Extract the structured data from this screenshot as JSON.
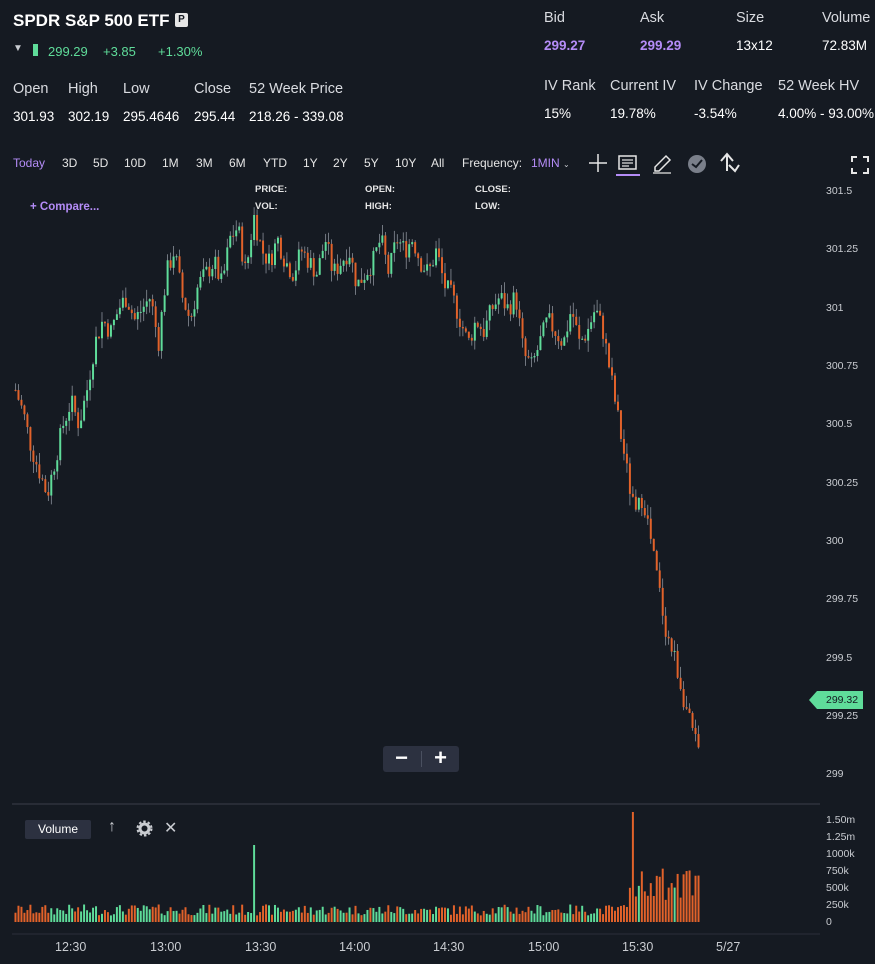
{
  "header": {
    "title": "SPDR S&P 500 ETF",
    "badge": "P",
    "last_price": "299.29",
    "change_abs": "+3.85",
    "change_pct": "+1.30%"
  },
  "quote": {
    "labels": [
      "Bid",
      "Ask",
      "Size",
      "Volume"
    ],
    "values": [
      "299.27",
      "299.29",
      "13x12",
      "72.83M"
    ]
  },
  "stats": {
    "labels": [
      "Open",
      "High",
      "Low",
      "Close",
      "52 Week Price"
    ],
    "values": [
      "301.93",
      "302.19",
      "295.4646",
      "295.44",
      "218.26 - 339.08"
    ]
  },
  "iv": {
    "labels": [
      "IV Rank",
      "Current IV",
      "IV Change",
      "52 Week HV"
    ],
    "values": [
      "15%",
      "19.78%",
      "-3.54%",
      "4.00% - 93.00%"
    ]
  },
  "toolbar": {
    "ranges": [
      "Today",
      "3D",
      "5D",
      "10D",
      "1M",
      "3M",
      "6M",
      "YTD",
      "1Y",
      "2Y",
      "5Y",
      "10Y",
      "All"
    ],
    "active_range": "Today",
    "frequency_label": "Frequency:",
    "frequency_value": "1MIN",
    "icons": [
      "crosshair-icon",
      "news-icon",
      "draw-pencil-icon",
      "events-icon",
      "share-icon",
      "fullscreen-icon"
    ]
  },
  "chart": {
    "compare_label": "+ Compare...",
    "ohlc_labels": {
      "price": "PRICE:",
      "vol": "VOL:",
      "open": "OPEN:",
      "high": "HIGH:",
      "close": "CLOSE:",
      "low": "LOW:"
    },
    "current_price_tag": "299.32",
    "volume_chip": "Volume",
    "colors": {
      "up": "#5fdc9a",
      "down": "#e2622a",
      "accent": "#b48cf7",
      "bg": "#151a22"
    }
  },
  "chart_data": {
    "type": "candlestick",
    "price_axis_ticks": [
      "301.5",
      "301.25",
      "301",
      "300.75",
      "300.5",
      "300.25",
      "300",
      "299.75",
      "299.5",
      "299.25",
      "299"
    ],
    "volume_axis_ticks": [
      "1.50m",
      "1.25m",
      "1000k",
      "750k",
      "500k",
      "250k",
      "0"
    ],
    "time_axis_ticks": [
      "12:30",
      "13:00",
      "13:30",
      "14:00",
      "14:30",
      "15:00",
      "15:30",
      "5/27"
    ],
    "ylim": [
      299,
      301.5
    ],
    "close_path": [
      300.65,
      300.55,
      300.4,
      300.3,
      300.2,
      300.35,
      300.5,
      300.6,
      300.5,
      300.65,
      300.85,
      300.95,
      300.9,
      301.0,
      301.05,
      300.95,
      301.0,
      301.05,
      300.85,
      301.15,
      301.25,
      301.05,
      300.95,
      301.1,
      301.15,
      301.2,
      301.1,
      301.3,
      301.35,
      301.15,
      301.4,
      301.25,
      301.2,
      301.3,
      301.2,
      301.15,
      301.25,
      301.2,
      301.15,
      301.3,
      301.15,
      301.2,
      301.25,
      301.1,
      301.15,
      301.2,
      301.3,
      301.15,
      301.3,
      301.25,
      301.3,
      301.2,
      301.15,
      301.25,
      301.1,
      301.05,
      300.95,
      300.85,
      300.95,
      300.9,
      301.0,
      301.05,
      301.0,
      301.05,
      300.8,
      300.75,
      300.85,
      300.95,
      300.9,
      300.85,
      301.0,
      300.85,
      300.9,
      301.0,
      300.9,
      300.7,
      300.5,
      300.3,
      300.1,
      300.2,
      300.0,
      299.8,
      299.6,
      299.5,
      299.35,
      299.2,
      299.1
    ],
    "current_price": 299.32
  }
}
